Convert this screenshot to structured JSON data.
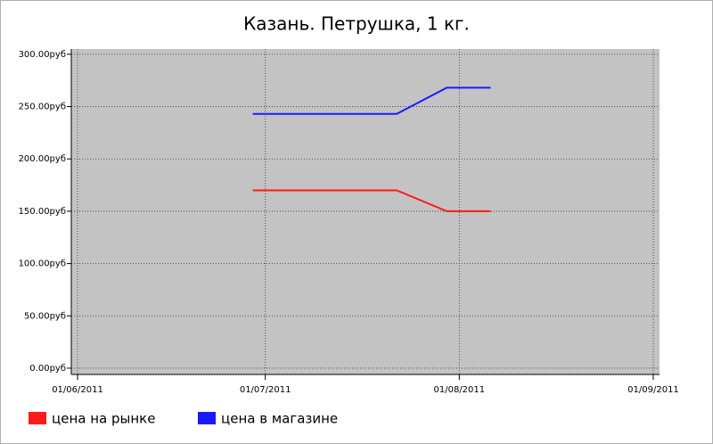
{
  "chart_data": {
    "type": "line",
    "title": "Казань. Петрушка, 1 кг.",
    "x": [
      "2011-06-29",
      "2011-07-22",
      "2011-07-30",
      "2011-08-06"
    ],
    "series": [
      {
        "name": "цена на рынке",
        "color": "#ff1a1a",
        "values": [
          170,
          170,
          150,
          150
        ]
      },
      {
        "name": "цена в магазине",
        "color": "#1a1aff",
        "values": [
          243,
          243,
          268,
          268
        ]
      }
    ],
    "xlim": [
      "2011-05-31",
      "2011-09-02"
    ],
    "xticks": [
      {
        "value": "2011-06-01",
        "label": "01/06/2011"
      },
      {
        "value": "2011-07-01",
        "label": "01/07/2011"
      },
      {
        "value": "2011-08-01",
        "label": "01/08/2011"
      },
      {
        "value": "2011-09-01",
        "label": "01/09/2011"
      }
    ],
    "ylim": [
      -6,
      305
    ],
    "yticks": [
      {
        "value": 0,
        "label": "0.00руб"
      },
      {
        "value": 50,
        "label": "50.00руб"
      },
      {
        "value": 100,
        "label": "100.00руб"
      },
      {
        "value": 150,
        "label": "150.00руб"
      },
      {
        "value": 200,
        "label": "200.00руб"
      },
      {
        "value": 250,
        "label": "250.00руб"
      },
      {
        "value": 300,
        "label": "300.00руб"
      }
    ],
    "grid": true,
    "legend": "bottom"
  }
}
